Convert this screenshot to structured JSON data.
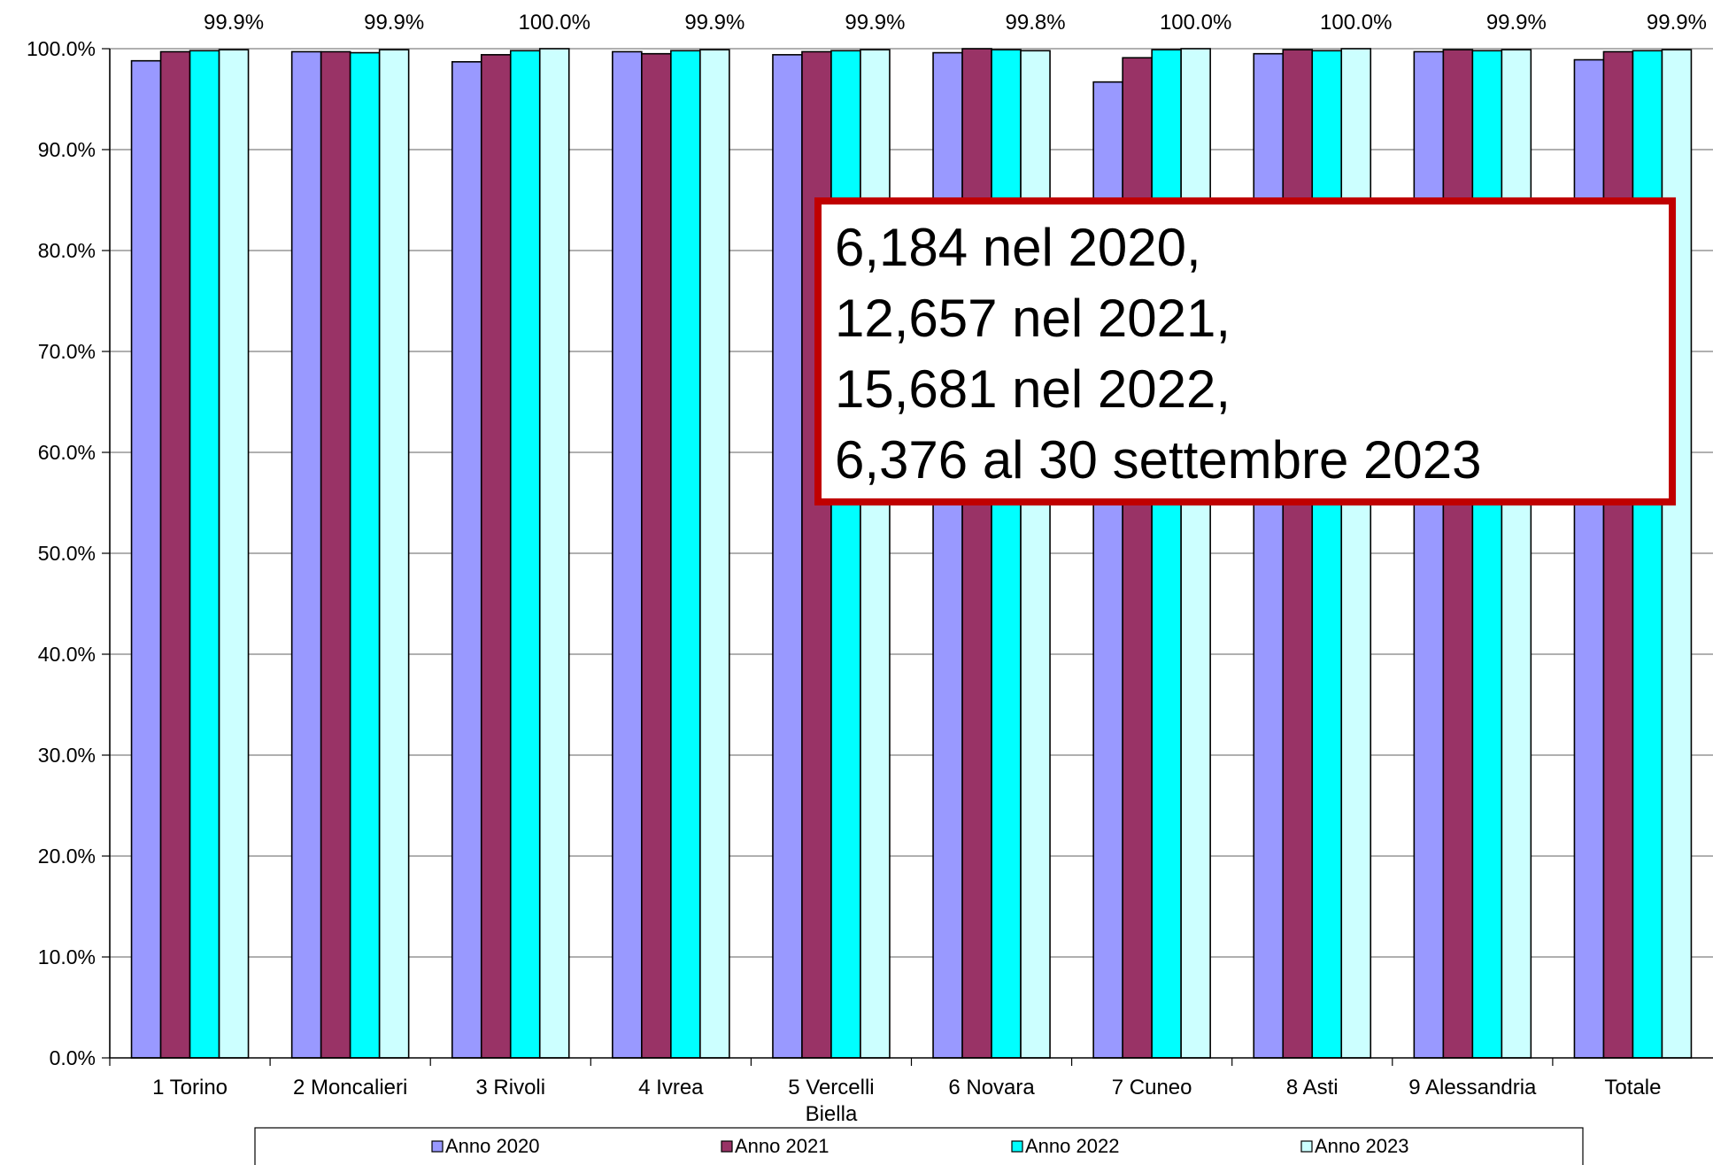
{
  "chart_data": {
    "type": "bar",
    "categories": [
      "1 Torino",
      "2 Moncalieri",
      "3 Rivoli",
      "4 Ivrea",
      "5 Vercelli\nBiella",
      "6 Novara",
      "7 Cuneo",
      "8 Asti",
      "9 Alessandria",
      "Totale"
    ],
    "series": [
      {
        "name": "Anno 2020",
        "color": "#9999FF",
        "values": [
          98.8,
          99.7,
          98.7,
          99.7,
          99.4,
          99.6,
          96.7,
          99.5,
          99.7,
          98.9
        ]
      },
      {
        "name": "Anno 2021",
        "color": "#993366",
        "values": [
          99.7,
          99.7,
          99.4,
          99.5,
          99.7,
          100.0,
          99.1,
          99.9,
          99.9,
          99.7
        ]
      },
      {
        "name": "Anno 2022",
        "color": "#00FFFF",
        "values": [
          99.8,
          99.6,
          99.8,
          99.8,
          99.8,
          99.9,
          99.9,
          99.8,
          99.8,
          99.8
        ]
      },
      {
        "name": "Anno 2023",
        "color": "#CCFFFF",
        "values": [
          99.9,
          99.9,
          100.0,
          99.9,
          99.9,
          99.8,
          100.0,
          100.0,
          99.9,
          99.9
        ]
      }
    ],
    "data_labels": [
      "99.9%",
      "99.9%",
      "100.0%",
      "99.9%",
      "99.9%",
      "99.8%",
      "100.0%",
      "100.0%",
      "99.9%",
      "99.9%"
    ],
    "ylim": [
      0,
      100
    ],
    "yticks": [
      "0.0%",
      "10.0%",
      "20.0%",
      "30.0%",
      "40.0%",
      "50.0%",
      "60.0%",
      "70.0%",
      "80.0%",
      "90.0%",
      "100.0%"
    ],
    "grid": true,
    "legend_position": "bottom",
    "annotation": {
      "lines": [
        "6,184 nel 2020,",
        "12,657 nel 2021,",
        "15,681 nel 2022,",
        "6,376 al 30 settembre 2023"
      ],
      "border_color": "#C00000"
    }
  }
}
